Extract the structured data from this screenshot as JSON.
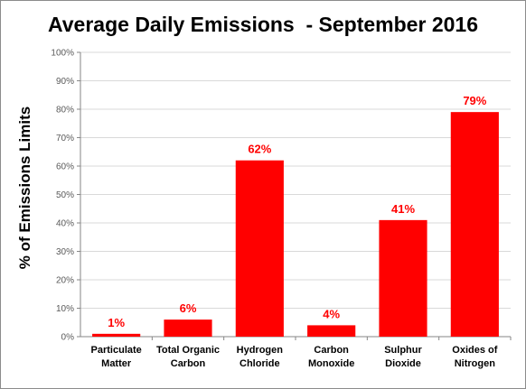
{
  "chart_data": {
    "type": "bar",
    "title": "Average Daily Emissions  - September 2016",
    "xlabel": "",
    "ylabel": "% of Emissions Limits",
    "ylim": [
      0,
      100
    ],
    "yticks": [
      "0%",
      "10%",
      "20%",
      "30%",
      "40%",
      "50%",
      "60%",
      "70%",
      "80%",
      "90%",
      "100%"
    ],
    "categories": [
      [
        "Particulate",
        "Matter"
      ],
      [
        "Total Organic",
        "Carbon"
      ],
      [
        "Hydrogen",
        "Chloride"
      ],
      [
        "Carbon",
        "Monoxide"
      ],
      [
        "Sulphur",
        "Dioxide"
      ],
      [
        "Oxides of",
        "Nitrogen"
      ]
    ],
    "values": [
      1,
      6,
      62,
      4,
      41,
      79
    ],
    "data_labels": [
      "1%",
      "6%",
      "62%",
      "4%",
      "41%",
      "79%"
    ],
    "bar_color": "#ff0000",
    "grid": true,
    "legend": "none"
  }
}
